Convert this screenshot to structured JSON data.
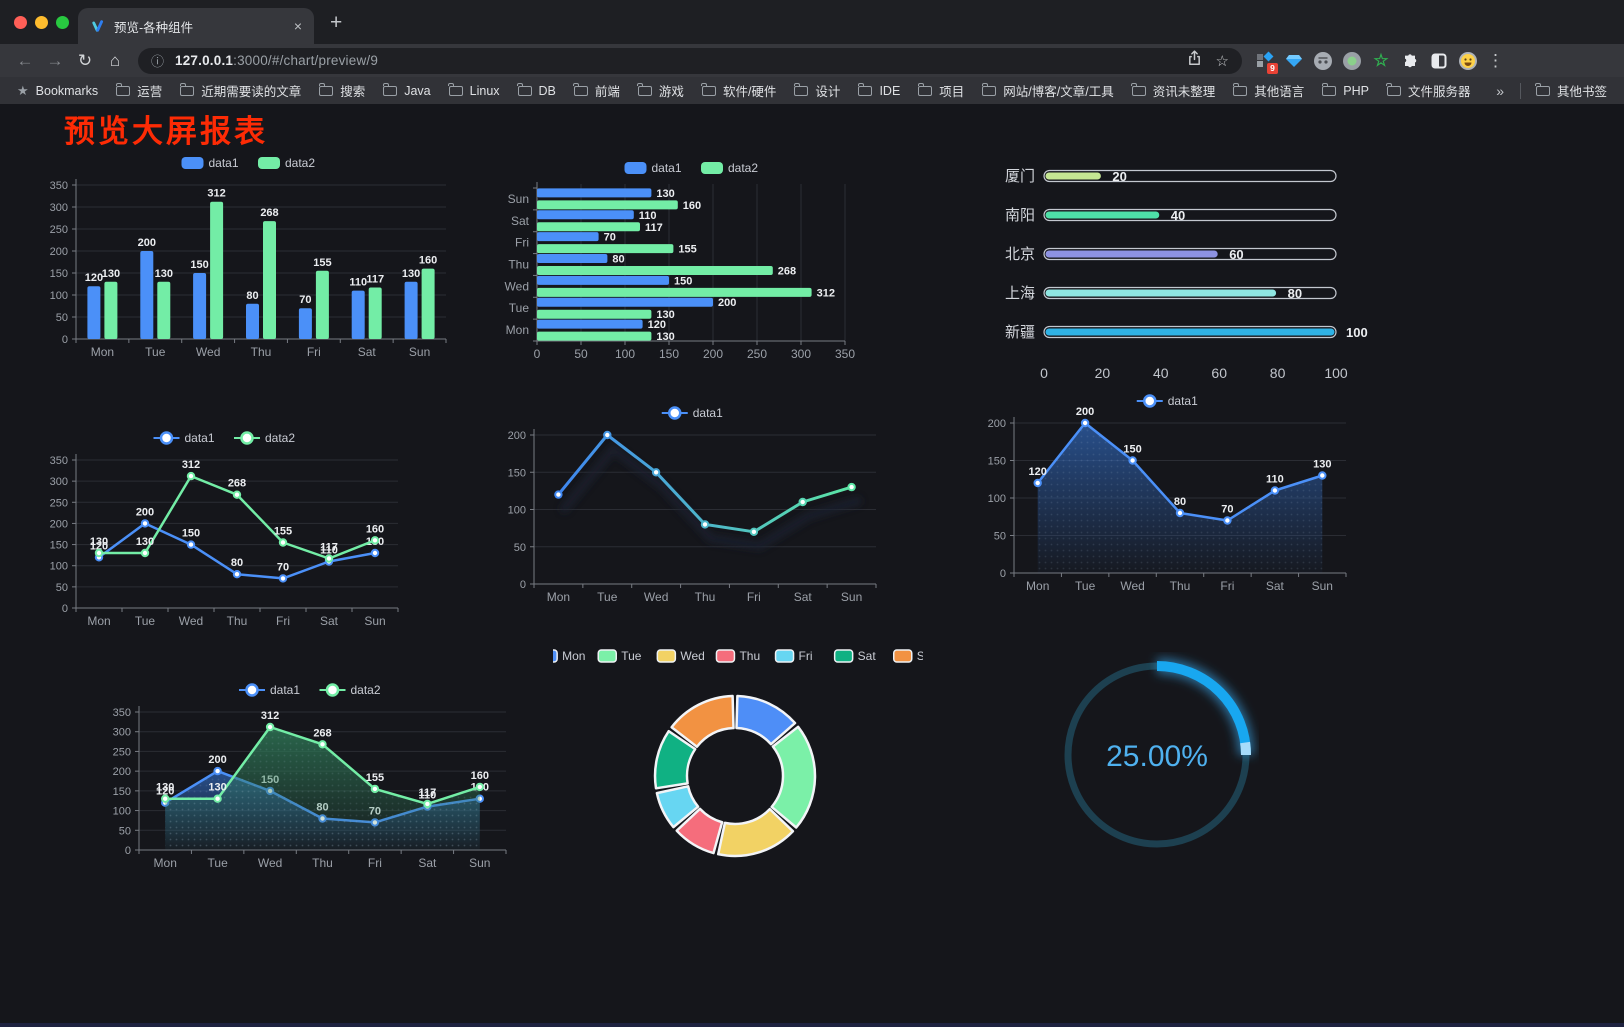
{
  "browser": {
    "traffic_lights": [
      "#ff5f57",
      "#febc2e",
      "#28c840"
    ],
    "tab": {
      "title": "预览-各种组件",
      "close_glyph": "×",
      "new_tab_glyph": "+"
    },
    "icons": {
      "back": "←",
      "forward": "→",
      "reload": "↻",
      "home": "⌂",
      "info": "ⓘ",
      "star": "☆",
      "menu": "⋮",
      "bookmarks_star": "★"
    },
    "url_host": "127.0.0.1",
    "url_rest": ":3000/#/chart/preview/9",
    "extensions_badge": "9",
    "bookmarks": {
      "label": "Bookmarks",
      "items": [
        "运营",
        "近期需要读的文章",
        "搜索",
        "Java",
        "Linux",
        "DB",
        "前端",
        "游戏",
        "软件/硬件",
        "设计",
        "IDE",
        "项目",
        "网站/博客/文章/工具",
        "资讯未整理",
        "其他语言",
        "PHP",
        "文件服务器"
      ],
      "overflow_glyph": "»",
      "other_label": "其他书签"
    }
  },
  "page": {
    "title": "预览大屏报表",
    "title_color": "#fd2b05"
  },
  "chart_data": [
    {
      "id": "grouped-bar",
      "type": "bar",
      "categories": [
        "Mon",
        "Tue",
        "Wed",
        "Thu",
        "Fri",
        "Sat",
        "Sun"
      ],
      "series": [
        {
          "name": "data1",
          "color": "#4b90f8",
          "values": [
            120,
            200,
            150,
            80,
            70,
            110,
            130
          ]
        },
        {
          "name": "data2",
          "color": "#73eda6",
          "values": [
            130,
            130,
            312,
            268,
            155,
            117,
            160
          ]
        }
      ],
      "ylim": [
        0,
        350
      ],
      "ystep": 50,
      "legend_position": "top",
      "grid": true,
      "labels": true
    },
    {
      "id": "grouped-hbar",
      "type": "hbar",
      "categories": [
        "Mon",
        "Tue",
        "Wed",
        "Thu",
        "Fri",
        "Sat",
        "Sun"
      ],
      "categories_top_to_bottom": [
        "Sun",
        "Sat",
        "Fri",
        "Thu",
        "Wed",
        "Tue",
        "Mon"
      ],
      "series": [
        {
          "name": "data1",
          "color": "#4b90f8",
          "values": [
            120,
            200,
            150,
            80,
            70,
            110,
            130
          ]
        },
        {
          "name": "data2",
          "color": "#73eda6",
          "values": [
            130,
            130,
            312,
            268,
            155,
            117,
            160
          ]
        }
      ],
      "xlim": [
        0,
        350
      ],
      "xstep": 50,
      "legend_position": "top",
      "labels": true
    },
    {
      "id": "city-progress",
      "type": "progress",
      "max": 100,
      "items": [
        {
          "label": "厦门",
          "value": 20,
          "color": "#c5e693"
        },
        {
          "label": "南阳",
          "value": 40,
          "color": "#4ee0a8"
        },
        {
          "label": "北京",
          "value": 60,
          "color": "#8d92e2"
        },
        {
          "label": "上海",
          "value": 80,
          "color": "#8fe6e2"
        },
        {
          "label": "新疆",
          "value": 100,
          "color": "#2fb2e5"
        }
      ],
      "xticks": [
        0,
        20,
        40,
        60,
        80,
        100
      ]
    },
    {
      "id": "two-line",
      "type": "line",
      "categories": [
        "Mon",
        "Tue",
        "Wed",
        "Thu",
        "Fri",
        "Sat",
        "Sun"
      ],
      "series": [
        {
          "name": "data1",
          "color": "#4b90f8",
          "values": [
            120,
            200,
            150,
            80,
            70,
            110,
            130
          ]
        },
        {
          "name": "data2",
          "color": "#73eda6",
          "values": [
            130,
            130,
            312,
            268,
            155,
            117,
            160
          ]
        }
      ],
      "ylim": [
        0,
        350
      ],
      "ystep": 50,
      "labels": true,
      "legend_position": "top"
    },
    {
      "id": "gradient-line",
      "type": "line-gradient",
      "categories": [
        "Mon",
        "Tue",
        "Wed",
        "Thu",
        "Fri",
        "Sat",
        "Sun"
      ],
      "series": [
        {
          "name": "data1",
          "color": "#4b90f8",
          "values": [
            120,
            200,
            150,
            80,
            70,
            110,
            130
          ]
        }
      ],
      "gradient": [
        "#3f86f0",
        "#5ce6a5"
      ],
      "ylim": [
        0,
        200
      ],
      "ystep": 50,
      "labels": false,
      "legend_position": "top"
    },
    {
      "id": "area-line",
      "type": "area",
      "categories": [
        "Mon",
        "Tue",
        "Wed",
        "Thu",
        "Fri",
        "Sat",
        "Sun"
      ],
      "series": [
        {
          "name": "data1",
          "color": "#4b90f8",
          "area_color": "#2d5ea8",
          "values": [
            120,
            200,
            150,
            80,
            70,
            110,
            130
          ]
        }
      ],
      "ylim": [
        0,
        200
      ],
      "ystep": 50,
      "labels": true,
      "legend_position": "top"
    },
    {
      "id": "two-area-line",
      "type": "area2",
      "categories": [
        "Mon",
        "Tue",
        "Wed",
        "Thu",
        "Fri",
        "Sat",
        "Sun"
      ],
      "series": [
        {
          "name": "data1",
          "color": "#4b90f8",
          "area_color": "#2d5ea8",
          "values": [
            120,
            200,
            150,
            80,
            70,
            110,
            130
          ]
        },
        {
          "name": "data2",
          "color": "#73eda6",
          "area_color": "#2f7a58",
          "values": [
            130,
            130,
            312,
            268,
            155,
            117,
            160
          ]
        }
      ],
      "ylim": [
        0,
        350
      ],
      "ystep": 50,
      "labels": true,
      "legend_position": "top"
    },
    {
      "id": "donut",
      "type": "pie",
      "items": [
        {
          "label": "Mon",
          "value": 120,
          "color": "#4e8ef7"
        },
        {
          "label": "Tue",
          "value": 200,
          "color": "#7bf0a8"
        },
        {
          "label": "Wed",
          "value": 150,
          "color": "#f2d264"
        },
        {
          "label": "Thu",
          "value": 80,
          "color": "#f56d7c"
        },
        {
          "label": "Fri",
          "value": 70,
          "color": "#67d6f2"
        },
        {
          "label": "Sat",
          "value": 110,
          "color": "#10b183"
        },
        {
          "label": "Sun",
          "value": 130,
          "color": "#f29242"
        }
      ],
      "legend_position": "top",
      "inner_radius_ratio": 0.6
    },
    {
      "id": "gauge",
      "type": "gauge",
      "value": 25,
      "max": 100,
      "label": "25.00%",
      "color": "#18a7f0",
      "track_color": "#1d4050",
      "text_color": "#4fb1ef"
    }
  ]
}
